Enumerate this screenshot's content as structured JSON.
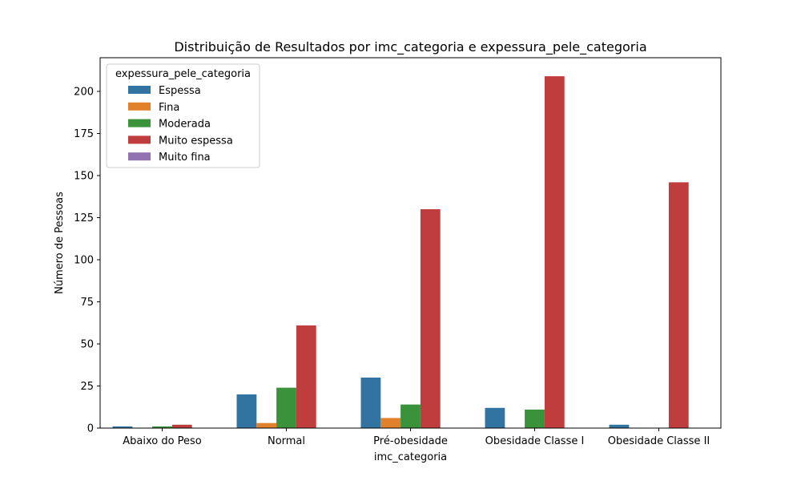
{
  "chart_data": {
    "type": "bar",
    "title": "Distribuição de Resultados por imc_categoria e expessura_pele_categoria",
    "xlabel": "imc_categoria",
    "ylabel": "Número de Pessoas",
    "categories": [
      "Abaixo do Peso",
      "Normal",
      "Pré-obesidade",
      "Obesidade Classe I",
      "Obesidade Classe II"
    ],
    "series": [
      {
        "name": "Espessa",
        "color": "#3274a1",
        "values": [
          1,
          20,
          30,
          12,
          2
        ]
      },
      {
        "name": "Fina",
        "color": "#e1812c",
        "values": [
          0,
          3,
          6,
          0,
          0
        ]
      },
      {
        "name": "Moderada",
        "color": "#3a923a",
        "values": [
          1,
          24,
          14,
          11,
          0
        ]
      },
      {
        "name": "Muito espessa",
        "color": "#c03d3e",
        "values": [
          2,
          61,
          130,
          209,
          146
        ]
      },
      {
        "name": "Muito fina",
        "color": "#9372b2",
        "values": [
          0,
          0,
          0,
          0,
          0
        ]
      }
    ],
    "ylim": [
      0,
      220
    ],
    "yticks": [
      0,
      25,
      50,
      75,
      100,
      125,
      150,
      175,
      200
    ],
    "legend": {
      "title": "expessura_pele_categoria",
      "placement": "top-left"
    },
    "grid": false
  }
}
